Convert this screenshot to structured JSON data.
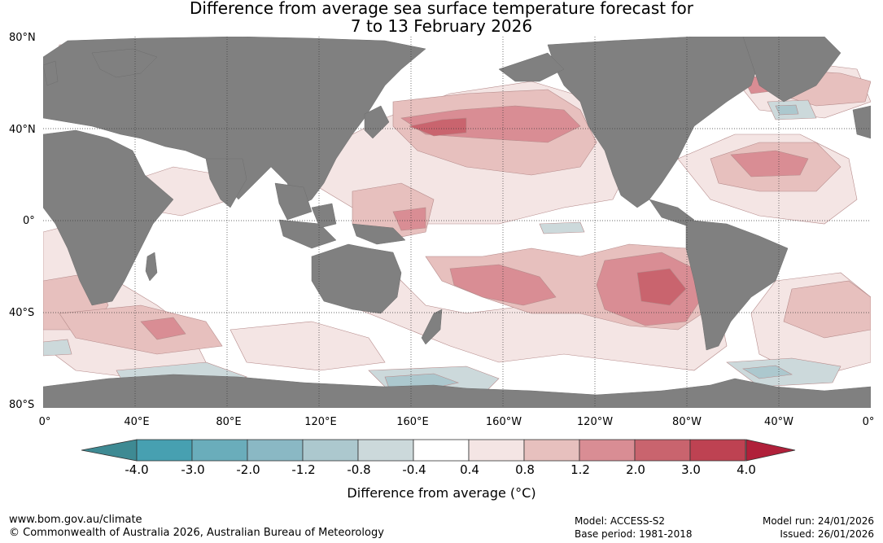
{
  "title": {
    "line1": "Difference from average sea surface temperature forecast for",
    "line2": "7 to 13 February 2026"
  },
  "map": {
    "lat_labels": [
      "80°N",
      "40°N",
      "0°",
      "40°S",
      "80°S"
    ],
    "lon_labels": [
      "0°",
      "40°E",
      "80°E",
      "120°E",
      "160°E",
      "160°W",
      "120°W",
      "80°W",
      "40°W",
      "0°"
    ],
    "land_color": "#808080",
    "grid_color": "#3a3a3a"
  },
  "legend": {
    "ticks": [
      "-4.0",
      "-3.0",
      "-2.0",
      "-1.2",
      "-0.8",
      "-0.4",
      "0.4",
      "0.8",
      "1.2",
      "2.0",
      "3.0",
      "4.0"
    ],
    "colors": [
      "#47a0b1",
      "#6aadbb",
      "#8ab8c4",
      "#acc8ce",
      "#ccd9db",
      "#ffffff",
      "#f4e5e4",
      "#e7c0be",
      "#d98d94",
      "#c9646e",
      "#be4252"
    ],
    "under_color": "#3e8a93",
    "over_color": "#b0203a",
    "title": "Difference from average (°C)"
  },
  "footer": {
    "website": "www.bom.gov.au/climate",
    "copyright": "© Commonwealth of Australia 2026, Australian Bureau of Meteorology",
    "model": "Model: ACCESS-S2",
    "base_period": "Base period: 1981-2018",
    "model_run": "Model run: 24/01/2026",
    "issued": "Issued: 26/01/2026"
  }
}
